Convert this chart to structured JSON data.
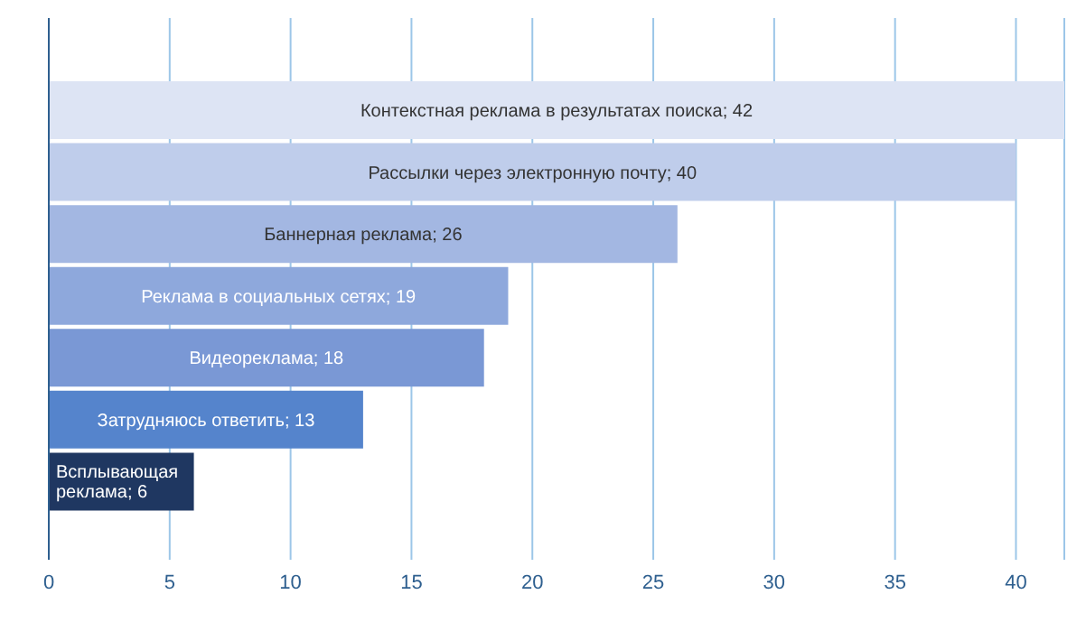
{
  "chart_data": {
    "type": "bar",
    "orientation": "horizontal",
    "categories": [
      "Контекстная реклама в результатах поиска; 42",
      "Рассылки через электронную почту; 40",
      "Баннерная реклама; 26",
      "Реклама в социальных сетях; 19",
      "Видеореклама; 18",
      "Затрудняюсь ответить; 13",
      "Всплывающая реклама; 6"
    ],
    "values": [
      42,
      40,
      26,
      19,
      18,
      13,
      6
    ],
    "colors": [
      "#dde4f4",
      "#bfcdeb",
      "#a3b7e2",
      "#8ea8dc",
      "#7a98d5",
      "#5584cc",
      "#1f3761"
    ],
    "xlim": [
      0,
      42
    ],
    "xticks": [
      0,
      5,
      10,
      15,
      20,
      25,
      30,
      35,
      40
    ],
    "grid": "x",
    "tick_labels": "x"
  }
}
